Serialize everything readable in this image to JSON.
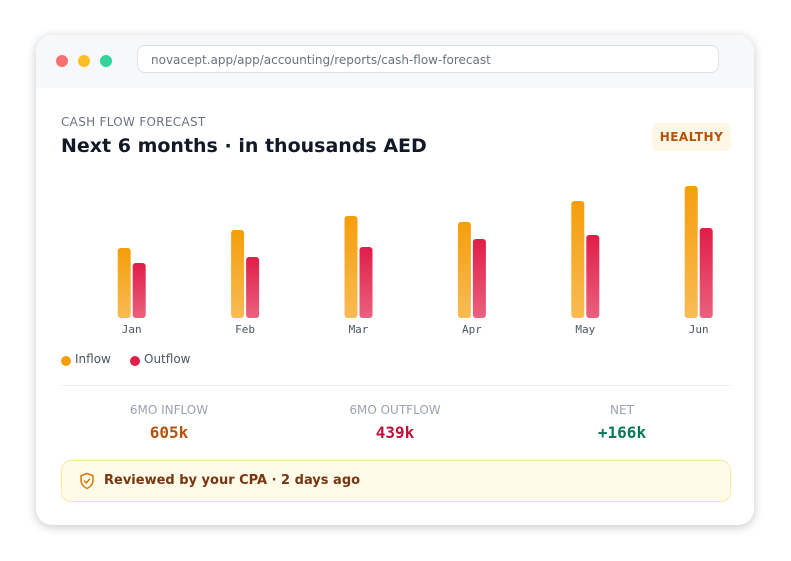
{
  "browser": {
    "url": "novacept.app/app/accounting/reports/cash-flow-forecast"
  },
  "header": {
    "eyebrow": "CASH FLOW FORECAST",
    "title": "Next 6 months · in thousands AED",
    "badge": "HEALTHY"
  },
  "chart_data": {
    "type": "bar",
    "categories": [
      "Jan",
      "Feb",
      "Mar",
      "Apr",
      "May",
      "Jun"
    ],
    "series": [
      {
        "name": "Inflow",
        "color": "#f59e0b",
        "values": [
          70,
          88,
          102,
          96,
          117,
          132
        ]
      },
      {
        "name": "Outflow",
        "color": "#e11d48",
        "values": [
          55,
          61,
          71,
          79,
          83,
          90
        ]
      }
    ]
  },
  "stats": [
    {
      "label": "6MO INFLOW",
      "value": "605k"
    },
    {
      "label": "6MO OUTFLOW",
      "value": "439k"
    },
    {
      "label": "NET",
      "value": "+166k"
    }
  ],
  "footer": {
    "text": "Reviewed by your CPA · 2 days ago"
  }
}
